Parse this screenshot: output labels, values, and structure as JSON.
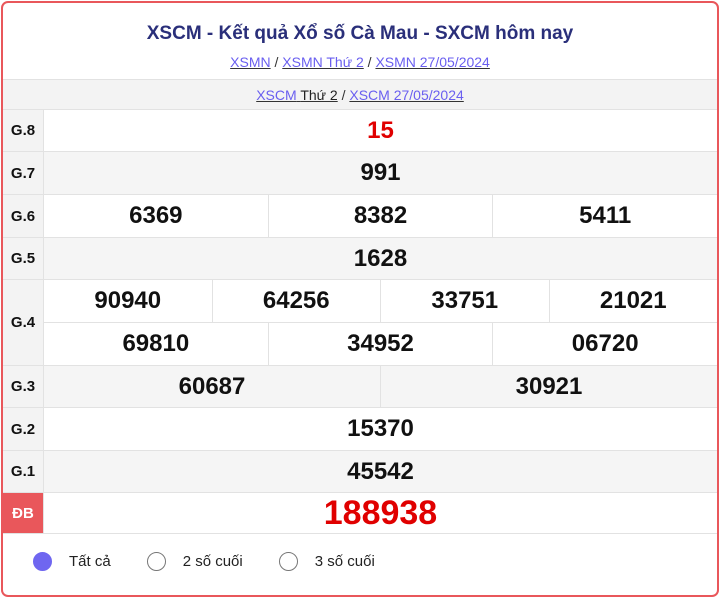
{
  "header": {
    "title": "XSCM - Kết quả Xổ số Cà Mau - SXCM hôm nay",
    "breadcrumb": [
      "XSMN",
      "XSMN Thứ 2",
      "XSMN 27/05/2024"
    ],
    "sep": "/"
  },
  "subnav": {
    "link1_a": "XSCM",
    "link1_b": "Thứ 2",
    "link2": "XSCM 27/05/2024"
  },
  "prizes": {
    "g8": {
      "label": "G.8",
      "values": [
        "15"
      ]
    },
    "g7": {
      "label": "G.7",
      "values": [
        "991"
      ]
    },
    "g6": {
      "label": "G.6",
      "values": [
        "6369",
        "8382",
        "5411"
      ]
    },
    "g5": {
      "label": "G.5",
      "values": [
        "1628"
      ]
    },
    "g4": {
      "label": "G.4",
      "values": [
        "90940",
        "64256",
        "33751",
        "21021",
        "69810",
        "34952",
        "06720"
      ]
    },
    "g3": {
      "label": "G.3",
      "values": [
        "60687",
        "30921"
      ]
    },
    "g2": {
      "label": "G.2",
      "values": [
        "15370"
      ]
    },
    "g1": {
      "label": "G.1",
      "values": [
        "45542"
      ]
    },
    "db": {
      "label": "ĐB",
      "values": [
        "188938"
      ]
    }
  },
  "filters": [
    {
      "label": "Tất cả",
      "selected": true
    },
    {
      "label": "2 số cuối",
      "selected": false
    },
    {
      "label": "3 số cuối",
      "selected": false
    }
  ],
  "colors": {
    "accent": "#e9575b",
    "special": "#e00000",
    "link": "#6a5ff0",
    "radio": "#6f66f0"
  }
}
